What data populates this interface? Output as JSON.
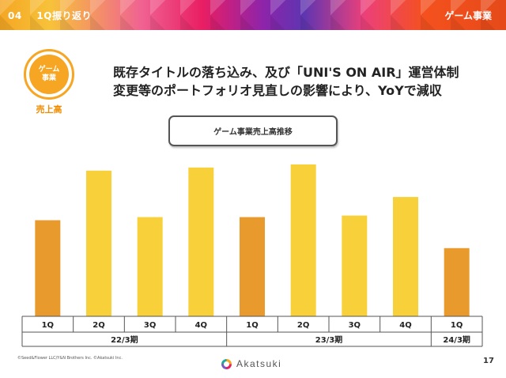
{
  "header": {
    "section_number": "04",
    "section_title": "1Q振り返り",
    "segment": "ゲーム事業"
  },
  "badge": {
    "line1": "ゲーム",
    "line2": "事業",
    "caption": "売上高"
  },
  "headline": {
    "line1": "既存タイトルの落ち込み、及び「UNI'S ON AIR」運営体制",
    "line2": "変更等のポートフォリオ見直しの影響により、YoYで減収"
  },
  "chart_title": "ゲーム事業売上高推移",
  "colors": {
    "q1_bar": "#e89a2c",
    "other_bar": "#f8d13a",
    "header_accent": "#e91e63"
  },
  "chart_data": {
    "type": "bar",
    "title": "ゲーム事業売上高推移",
    "categories": [
      "1Q",
      "2Q",
      "3Q",
      "4Q",
      "1Q",
      "2Q",
      "3Q",
      "4Q",
      "1Q"
    ],
    "groups": [
      {
        "label": "22/3期",
        "count": 4
      },
      {
        "label": "23/3期",
        "count": 4
      },
      {
        "label": "24/3期",
        "count": 1
      }
    ],
    "values": [
      62,
      94,
      64,
      96,
      64,
      98,
      65,
      77,
      44
    ],
    "highlight_quarter": "1Q",
    "ylim": [
      0,
      100
    ],
    "value_note": "relative bar heights; no axis values shown",
    "grid": false,
    "legend": "none"
  },
  "footer": {
    "copyright": "©Seed&Flower LLC/Y&N Brothers Inc. ©Akatsuki Inc.",
    "logo": "Akatsuki",
    "page": "17"
  }
}
